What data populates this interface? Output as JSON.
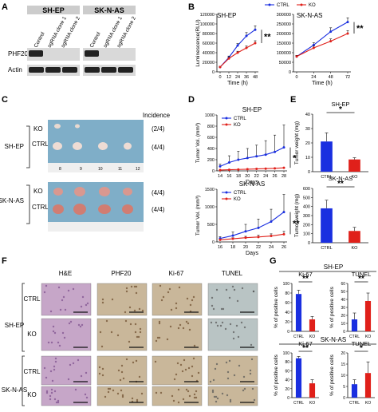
{
  "panels": {
    "A": {
      "label": "A",
      "cell_lines": [
        "SH-EP",
        "SK-N-AS"
      ],
      "lanes": [
        "Control",
        "sgRNA clone 1",
        "sgRNA clone 2"
      ],
      "proteins": [
        "PHF20",
        "Actin"
      ]
    },
    "B": {
      "label": "B"
    },
    "C": {
      "label": "C",
      "incidence_header": "Incidence",
      "rows": [
        {
          "line": "SH-EP",
          "ko": "KO",
          "ctrl": "CTRL",
          "ko_incidence": "(2/4)",
          "ctrl_incidence": "(4/4)"
        },
        {
          "line": "SK-N-AS",
          "ko": "KO",
          "ctrl": "CTRL",
          "ko_incidence": "(4/4)",
          "ctrl_incidence": "(4/4)"
        }
      ],
      "ruler_marks": [
        "8",
        "9",
        "10",
        "11",
        "12"
      ]
    },
    "D": {
      "label": "D"
    },
    "E": {
      "label": "E"
    },
    "F": {
      "label": "F",
      "columns": [
        "H&E",
        "PHF20",
        "Ki-67",
        "TUNEL"
      ],
      "groups": [
        {
          "line": "SH-EP",
          "rows": [
            "CTRL",
            "KO"
          ]
        },
        {
          "line": "SK-N-AS",
          "rows": [
            "CTRL",
            "KO"
          ]
        }
      ]
    },
    "G": {
      "label": "G"
    }
  },
  "colors": {
    "ctrl": "#1a2fe0",
    "ko": "#e0201a",
    "blot_bg": "#d9d9d9",
    "band": "#222222",
    "tissue_pink": "#c6a6c8",
    "tissue_brown": "#c9b79a",
    "mouse_bg": "#7faec8"
  },
  "chart_data": [
    {
      "id": "B1",
      "type": "line",
      "title": "SH-EP",
      "xlabel": "Time (h)",
      "ylabel": "Luminescence(RLU)",
      "x": [
        0,
        12,
        24,
        36,
        48
      ],
      "ylim": [
        0,
        120000
      ],
      "yticks": [
        "0",
        "20000",
        "40000",
        "60000",
        "80000",
        "100000",
        "120000"
      ],
      "legend": [
        "CTRL",
        "KO"
      ],
      "series": [
        {
          "name": "CTRL",
          "values": [
            10000,
            30000,
            55000,
            75000,
            88000
          ],
          "errors": [
            1500,
            3000,
            4000,
            7000,
            8000
          ]
        },
        {
          "name": "KO",
          "values": [
            10000,
            28000,
            40000,
            50000,
            60000
          ],
          "errors": [
            1500,
            2500,
            3000,
            4000,
            5000
          ]
        }
      ],
      "annotation": "**"
    },
    {
      "id": "B2",
      "type": "line",
      "title": "SK-N-AS",
      "xlabel": "Time (h)",
      "ylabel": "",
      "x": [
        0,
        24,
        48,
        72
      ],
      "ylim": [
        0,
        300000
      ],
      "yticks": [
        "0",
        "50000",
        "100000",
        "150000",
        "200000",
        "250000",
        "300000"
      ],
      "series": [
        {
          "name": "CTRL",
          "values": [
            80000,
            140000,
            210000,
            260000
          ],
          "errors": [
            6000,
            12000,
            20000,
            22000
          ]
        },
        {
          "name": "KO",
          "values": [
            80000,
            125000,
            160000,
            200000
          ],
          "errors": [
            6000,
            10000,
            12000,
            15000
          ]
        }
      ],
      "annotation": "**"
    },
    {
      "id": "D1",
      "type": "line",
      "title": "SH-EP",
      "xlabel": "Days",
      "ylabel": "Tumor Vol. (mm³)",
      "x": [
        14,
        16,
        18,
        20,
        22,
        24,
        26,
        28
      ],
      "ylim": [
        0,
        1000
      ],
      "yticks": [
        "0",
        "200",
        "400",
        "600",
        "800",
        "1000"
      ],
      "legend": [
        "CTRL",
        "KO"
      ],
      "series": [
        {
          "name": "CTRL",
          "values": [
            80,
            150,
            200,
            230,
            260,
            290,
            340,
            420
          ],
          "errors": [
            40,
            120,
            150,
            170,
            200,
            250,
            300,
            400
          ]
        },
        {
          "name": "KO",
          "values": [
            15,
            20,
            25,
            30,
            35,
            40,
            45,
            55
          ],
          "errors": [
            0,
            0,
            0,
            0,
            0,
            0,
            0,
            0
          ]
        }
      ],
      "annotation": "*"
    },
    {
      "id": "D2",
      "type": "line",
      "title": "SK-N-AS",
      "xlabel": "Days",
      "ylabel": "Tumor Vol. (mm³)",
      "x": [
        16,
        18,
        20,
        22,
        24,
        26
      ],
      "ylim": [
        0,
        1500
      ],
      "yticks": [
        "0",
        "500",
        "1000",
        "1500"
      ],
      "legend": [
        "CTRL",
        "KO"
      ],
      "series": [
        {
          "name": "CTRL",
          "values": [
            100,
            180,
            300,
            400,
            580,
            850
          ],
          "errors": [
            50,
            100,
            200,
            250,
            350,
            500
          ]
        },
        {
          "name": "KO",
          "values": [
            60,
            90,
            120,
            140,
            170,
            220
          ],
          "errors": [
            20,
            30,
            40,
            50,
            60,
            80
          ]
        }
      ],
      "annotation": "**"
    },
    {
      "id": "E1",
      "type": "bar",
      "title": "SH-EP",
      "ylabel": "Tumor weight (mg)",
      "categories": [
        "CTRL",
        "KO"
      ],
      "values": [
        21,
        8.5
      ],
      "errors": [
        6,
        1.2
      ],
      "ylim": [
        0,
        40
      ],
      "yticks": [
        "0",
        "10",
        "20",
        "30",
        "40"
      ],
      "annotation": "*"
    },
    {
      "id": "E2",
      "type": "bar",
      "title": "SK-N-AS",
      "ylabel": "Tumor weight (mg)",
      "categories": [
        "CTRL",
        "KO"
      ],
      "values": [
        380,
        130
      ],
      "errors": [
        90,
        40
      ],
      "ylim": [
        0,
        600
      ],
      "yticks": [
        "0",
        "100",
        "200",
        "300",
        "400",
        "500",
        "600"
      ],
      "annotation": "**"
    },
    {
      "id": "G1",
      "type": "bar",
      "title": "Ki-67",
      "group": "SH-EP",
      "ylabel": "% of positive cells",
      "categories": [
        "CTRL",
        "KO"
      ],
      "values": [
        78,
        25
      ],
      "errors": [
        8,
        6
      ],
      "ylim": [
        0,
        100
      ],
      "yticks": [
        "0",
        "20",
        "40",
        "60",
        "80",
        "100"
      ],
      "annotation": "**"
    },
    {
      "id": "G2",
      "type": "bar",
      "title": "TUNEL",
      "group": "SH-EP",
      "ylabel": "% of positive cells",
      "categories": [
        "CTRL",
        "KO"
      ],
      "values": [
        15,
        38
      ],
      "errors": [
        8,
        10
      ],
      "ylim": [
        0,
        60
      ],
      "yticks": [
        "0",
        "10",
        "20",
        "30",
        "40",
        "50",
        "60"
      ],
      "annotation": "**"
    },
    {
      "id": "G3",
      "type": "bar",
      "title": "Ki-67",
      "group": "SK-N-AS",
      "ylabel": "% of positive cells",
      "categories": [
        "CTRL",
        "KO"
      ],
      "values": [
        88,
        32
      ],
      "errors": [
        4,
        8
      ],
      "ylim": [
        0,
        100
      ],
      "yticks": [
        "0",
        "20",
        "40",
        "60",
        "80",
        "100"
      ],
      "annotation": "**"
    },
    {
      "id": "G4",
      "type": "bar",
      "title": "TUNEL",
      "group": "SK-N-AS",
      "ylabel": "% of positive cells",
      "categories": [
        "CTRL",
        "KO"
      ],
      "values": [
        6,
        11
      ],
      "errors": [
        2,
        5
      ],
      "ylim": [
        0,
        20
      ],
      "yticks": [
        "0",
        "5",
        "10",
        "15",
        "20"
      ],
      "annotation": "*"
    }
  ]
}
